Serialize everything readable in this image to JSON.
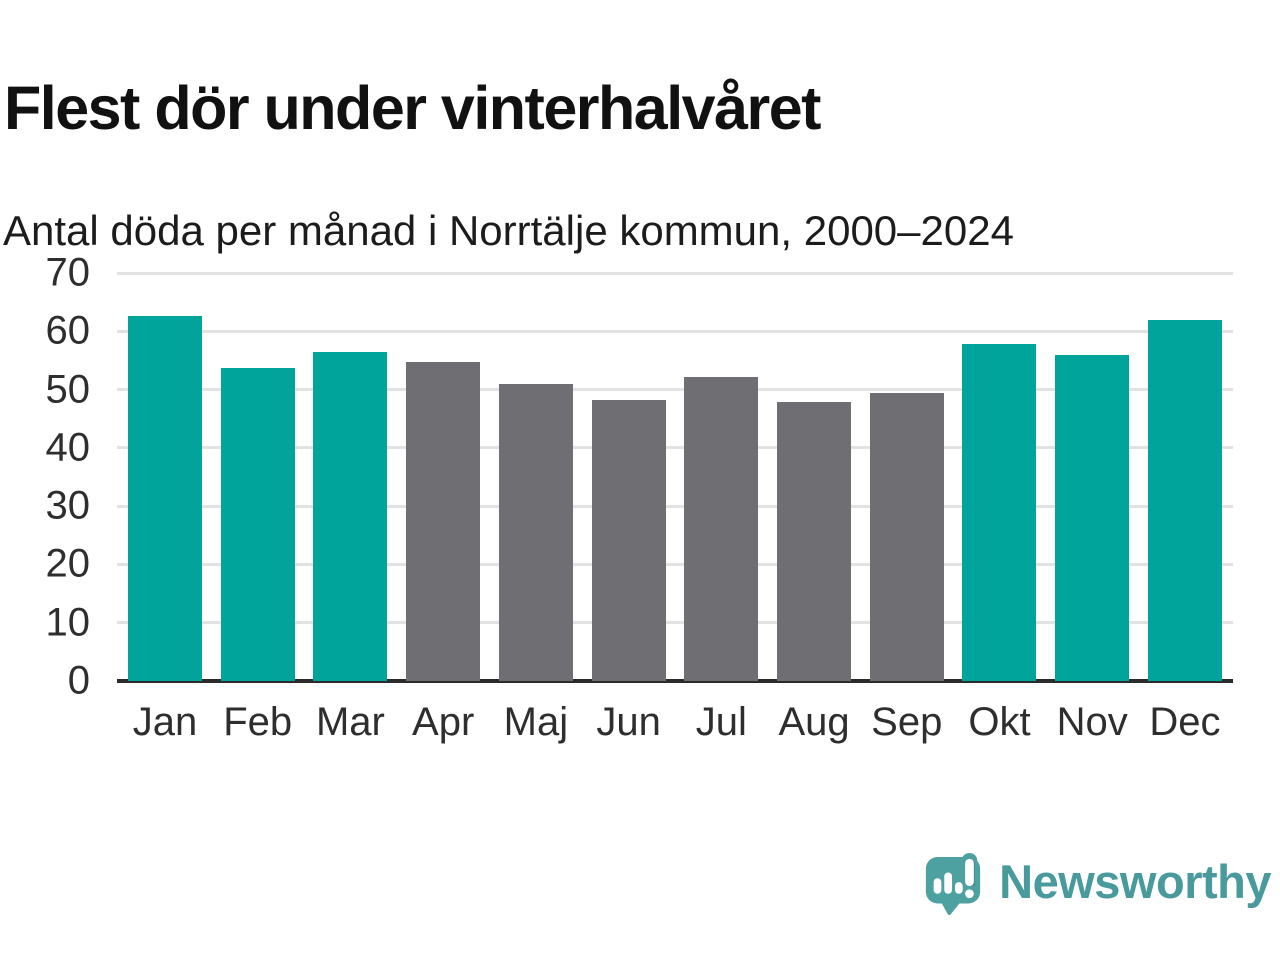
{
  "chart_data": {
    "type": "bar",
    "title": "Flest dör under vinterhalvåret",
    "subtitle": "Antal döda per månad i Norrtälje kommun, 2000–2024",
    "categories": [
      "Jan",
      "Feb",
      "Mar",
      "Apr",
      "Maj",
      "Jun",
      "Jul",
      "Aug",
      "Sep",
      "Okt",
      "Nov",
      "Dec"
    ],
    "values": [
      62.6,
      53.7,
      56.5,
      54.8,
      50.9,
      48.2,
      52.2,
      47.8,
      49.5,
      57.8,
      55.9,
      62.0
    ],
    "bar_colors": [
      "teal",
      "teal",
      "teal",
      "gray",
      "gray",
      "gray",
      "gray",
      "gray",
      "gray",
      "teal",
      "teal",
      "teal"
    ],
    "palette": {
      "teal": "#00a49b",
      "gray": "#6e6e73"
    },
    "xlabel": "",
    "ylabel": "",
    "ylim": [
      0,
      70
    ],
    "yticks": [
      0,
      10,
      20,
      30,
      40,
      50,
      60,
      70
    ],
    "grid": true,
    "legend": false
  },
  "footer": {
    "brand": "Newsworthy",
    "brand_color": "#489a9c",
    "icon": "newsworthy-speech-bubble-chart-icon",
    "icon_color": "#4da1a0",
    "icon_shadow_color": "#3d8f8e"
  }
}
